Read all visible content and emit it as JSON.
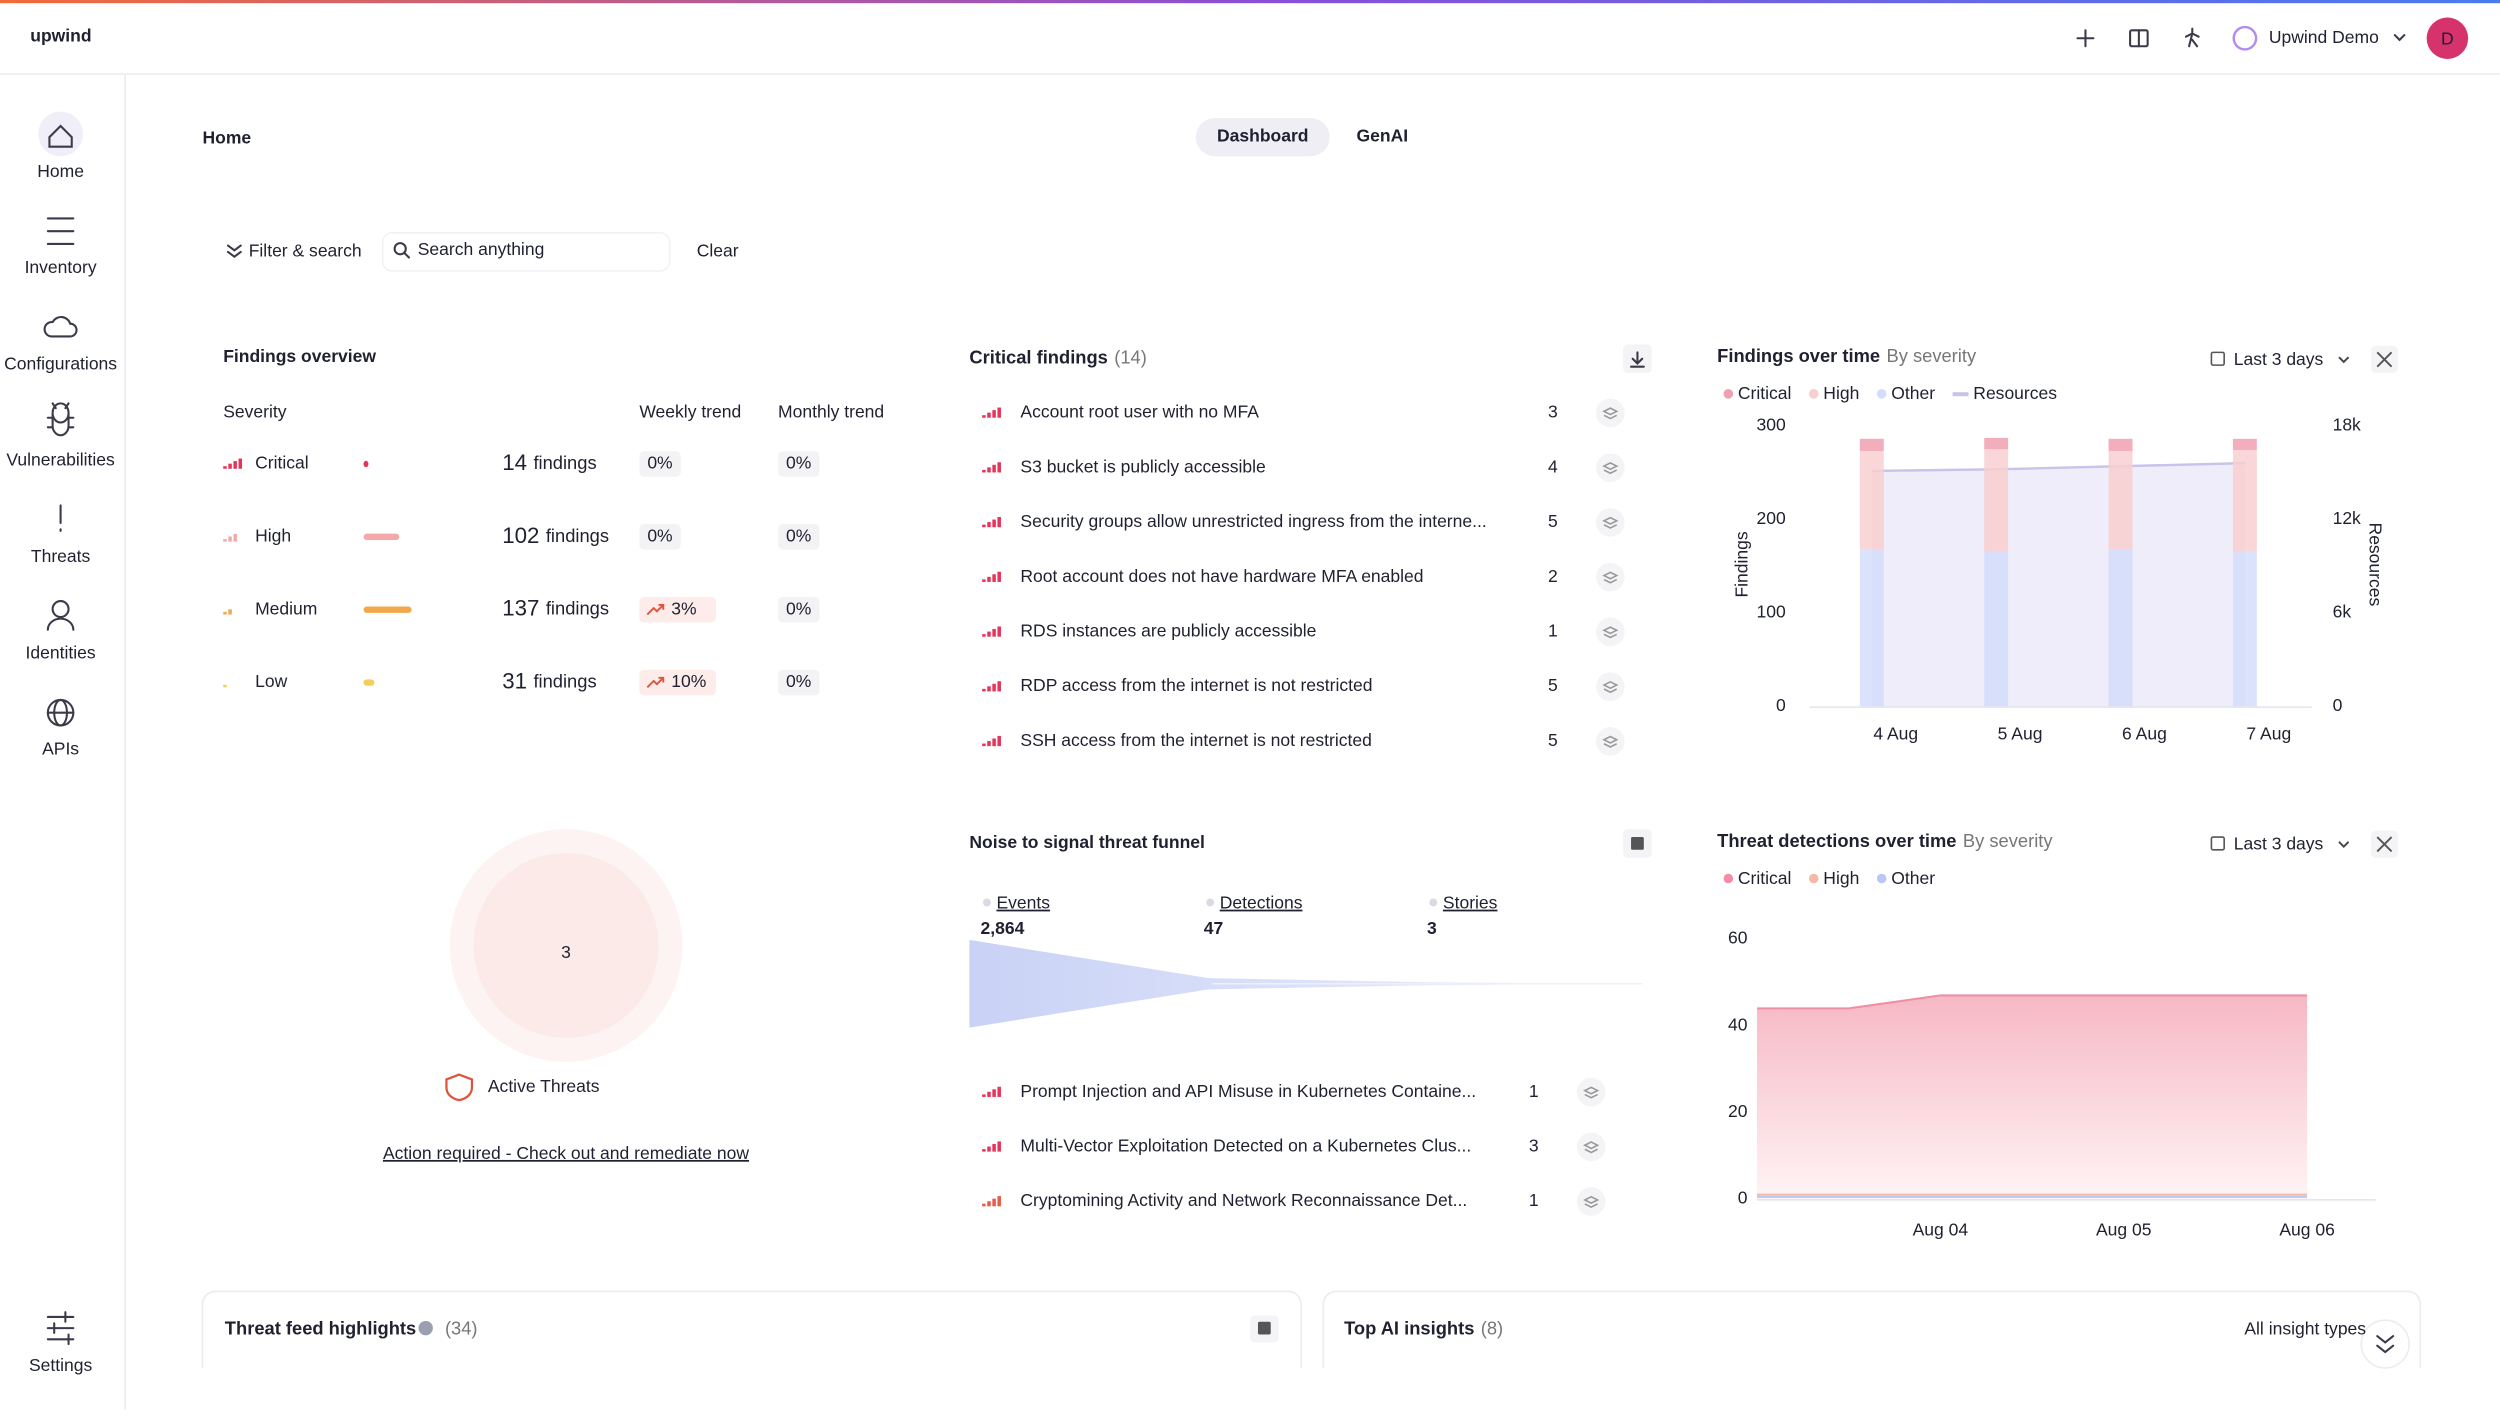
{
  "header": {
    "logo": "upwind",
    "account": "Upwind Demo",
    "avatar": "D"
  },
  "nav": {
    "items": [
      "Home",
      "Inventory",
      "Configurations",
      "Vulnerabilities",
      "Threats",
      "Identities",
      "APIs"
    ],
    "settings": "Settings"
  },
  "page": {
    "title": "Home",
    "tabs": [
      "Dashboard",
      "GenAI"
    ]
  },
  "filter": {
    "toggle": "Filter & search",
    "placeholder": "Search anything",
    "clear": "Clear"
  },
  "findings_overview": {
    "title": "Findings overview",
    "columns": [
      "Severity",
      "Weekly trend",
      "Monthly trend"
    ],
    "unit": "findings",
    "rows": [
      {
        "severity": "Critical",
        "count": 14,
        "weekly": "0%",
        "monthly": "0%",
        "color": "#e5355b"
      },
      {
        "severity": "High",
        "count": 102,
        "weekly": "0%",
        "monthly": "0%",
        "color": "#f4a9a9"
      },
      {
        "severity": "Medium",
        "count": 137,
        "weekly": "3%",
        "monthly": "0%",
        "color": "#f0a84a"
      },
      {
        "severity": "Low",
        "count": 31,
        "weekly": "10%",
        "monthly": "0%",
        "color": "#f5cd5b"
      }
    ]
  },
  "critical_findings": {
    "title": "Critical findings",
    "total": "(14)",
    "items": [
      {
        "name": "Account root user with no MFA",
        "count": 3
      },
      {
        "name": "S3 bucket is publicly accessible",
        "count": 4
      },
      {
        "name": "Security groups allow unrestricted ingress from the interne...",
        "count": 5
      },
      {
        "name": "Root account does not have hardware MFA enabled",
        "count": 2
      },
      {
        "name": "RDS instances are publicly accessible",
        "count": 1
      },
      {
        "name": "RDP access from the internet is not restricted",
        "count": 5
      },
      {
        "name": "SSH access from the internet is not restricted",
        "count": 5
      }
    ]
  },
  "active_threats": {
    "count": 3,
    "label": "Active Threats",
    "action": "Action required - Check out and remediate now"
  },
  "funnel": {
    "title": "Noise to signal threat funnel",
    "stages": [
      "Events",
      "Detections",
      "Stories"
    ],
    "values": [
      2864,
      47,
      3
    ],
    "value_labels": [
      "2,864",
      "47",
      "3"
    ],
    "items": [
      {
        "name": "Prompt Injection and API Misuse in Kubernetes Containe...",
        "count": 1
      },
      {
        "name": "Multi-Vector Exploitation Detected on a Kubernetes Clus...",
        "count": 3
      },
      {
        "name": "Cryptomining Activity and Network Reconnaissance Det...",
        "count": 1
      }
    ]
  },
  "chart_data": [
    {
      "type": "bar",
      "title": "Findings over time",
      "subtitle": "By severity",
      "range": "Last 3 days",
      "ylabel": "Findings",
      "y2label": "Resources",
      "categories": [
        "4 Aug",
        "5 Aug",
        "6 Aug",
        "7 Aug"
      ],
      "ylim": [
        0,
        300
      ],
      "yticks": [
        0,
        100,
        200,
        300
      ],
      "y2lim": [
        0,
        18000
      ],
      "y2ticks": [
        0,
        {
          "value": 6000,
          "label": "6k"
        },
        {
          "value": 12000,
          "label": "12k"
        },
        {
          "value": 18000,
          "label": "18k"
        }
      ],
      "stacked": true,
      "series": [
        {
          "name": "Critical",
          "color": "#f0a0b2",
          "values": [
            13,
            12,
            13,
            12
          ]
        },
        {
          "name": "High",
          "color": "#f8cfd0",
          "values": [
            105,
            110,
            105,
            108
          ]
        },
        {
          "name": "Other",
          "color": "#d3ddfb",
          "values": [
            168,
            165,
            168,
            166
          ]
        },
        {
          "name": "Resources",
          "color": "#c7c3ea",
          "axis": "y2",
          "values": [
            15100,
            15200,
            15400,
            15600
          ]
        }
      ]
    },
    {
      "type": "area",
      "title": "Threat detections over time",
      "subtitle": "By severity",
      "range": "Last 3 days",
      "categories": [
        null,
        null,
        "Aug 04",
        null,
        "Aug 05",
        null,
        "Aug 06"
      ],
      "ylim": [
        0,
        60
      ],
      "yticks": [
        0,
        20,
        40,
        60
      ],
      "series": [
        {
          "name": "Critical",
          "color": "#f08fa3",
          "values": [
            44,
            44,
            47,
            47,
            47,
            47,
            47
          ]
        },
        {
          "name": "High",
          "color": "#f5b9a7",
          "values": [
            1,
            1,
            1,
            1,
            1,
            1,
            1
          ]
        },
        {
          "name": "Other",
          "color": "#b9c8f5",
          "values": [
            0.5,
            0.5,
            0.5,
            0.5,
            0.5,
            0.5,
            0.5
          ]
        }
      ]
    }
  ],
  "bottom": {
    "cards": [
      {
        "title": "Threat feed highlights",
        "count": "(34)"
      },
      {
        "title": "Top AI insights",
        "count": "(8)",
        "filter": "All insight types"
      }
    ]
  }
}
